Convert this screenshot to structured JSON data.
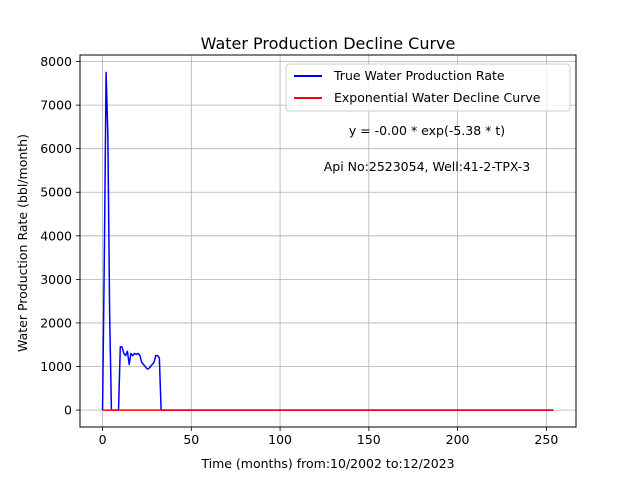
{
  "chart_data": {
    "type": "line",
    "title": "Water Production Decline Curve",
    "xlabel": "Time (months) from:10/2002 to:12/2023",
    "ylabel": "Water Production Rate (bbl/month)",
    "xlim": [
      -12.7,
      266.7
    ],
    "ylim": [
      -388,
      8150
    ],
    "xticks": [
      0,
      50,
      100,
      150,
      200,
      250
    ],
    "yticks": [
      0,
      1000,
      2000,
      3000,
      4000,
      5000,
      6000,
      7000,
      8000
    ],
    "grid": true,
    "legend_position": "upper right",
    "annotations": [
      "y = -0.00 * exp(-5.38 * t)",
      "Api No:2523054, Well:41-2-TPX-3"
    ],
    "series": [
      {
        "name": "True Water Production Rate",
        "color": "#0000ff",
        "x": [
          0,
          1,
          2,
          3,
          4,
          5,
          6,
          7,
          8,
          9,
          10,
          11,
          12,
          13,
          14,
          15,
          16,
          17,
          18,
          19,
          20,
          21,
          22,
          23,
          24,
          25,
          26,
          27,
          28,
          29,
          30,
          31,
          32,
          33,
          34,
          40,
          60,
          100,
          150,
          200,
          254
        ],
        "y": [
          0,
          3500,
          7750,
          6300,
          2200,
          0,
          0,
          0,
          0,
          0,
          1450,
          1450,
          1300,
          1250,
          1350,
          1050,
          1300,
          1250,
          1300,
          1280,
          1300,
          1260,
          1100,
          1050,
          1000,
          950,
          950,
          1000,
          1050,
          1100,
          1250,
          1250,
          1200,
          0,
          0,
          0,
          0,
          0,
          0,
          0,
          0
        ]
      },
      {
        "name": "Exponential Water Decline Curve",
        "color": "#ff0000",
        "x": [
          0,
          50,
          100,
          150,
          200,
          254
        ],
        "y": [
          0,
          0,
          0,
          0,
          0,
          0
        ]
      }
    ]
  }
}
